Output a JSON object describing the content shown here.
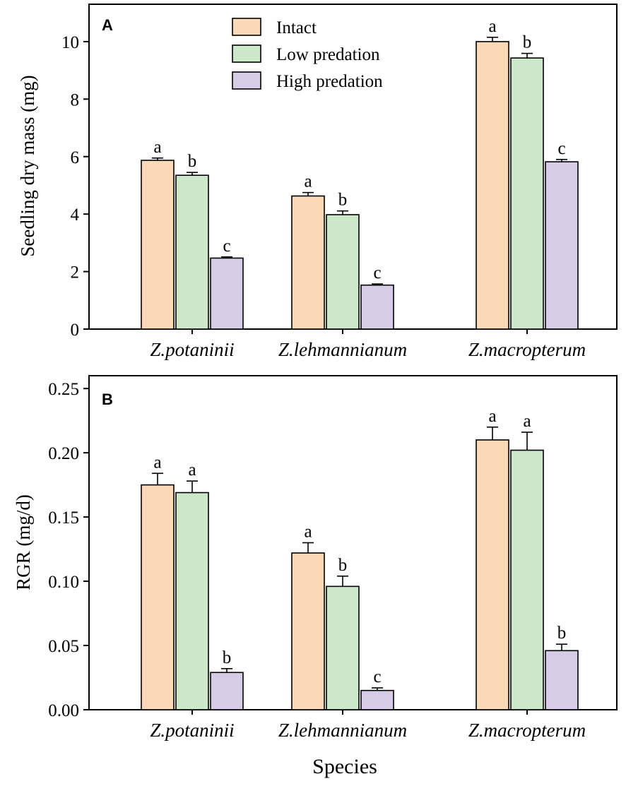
{
  "chart_data": [
    {
      "panel": "A",
      "type": "bar",
      "categories": [
        "Z.potaninii",
        "Z.lehmannianum",
        "Z.macropterum"
      ],
      "ylabel": "Seedling dry mass (mg)",
      "xlabel": "",
      "ylim": [
        0,
        11.3
      ],
      "yticks": [
        0,
        2,
        4,
        6,
        8,
        10
      ],
      "ytick_labels": [
        "0",
        "2",
        "4",
        "6",
        "8",
        "10"
      ],
      "legend": {
        "position": "top-center",
        "entries": [
          "Intact",
          "Low predation",
          "High predation"
        ]
      },
      "series": [
        {
          "name": "Intact",
          "color": "#FAD9B8",
          "values": [
            5.87,
            4.63,
            10.0
          ],
          "errors": [
            0.08,
            0.12,
            0.15
          ],
          "labels": [
            "a",
            "a",
            "a"
          ]
        },
        {
          "name": "Low predation",
          "color": "#CDE7CB",
          "values": [
            5.35,
            3.98,
            9.43
          ],
          "errors": [
            0.1,
            0.13,
            0.16
          ],
          "labels": [
            "b",
            "b",
            "b"
          ]
        },
        {
          "name": "High predation",
          "color": "#D7CCE5",
          "values": [
            2.47,
            1.53,
            5.82
          ],
          "errors": [
            0.04,
            0.04,
            0.08
          ],
          "labels": [
            "c",
            "c",
            "c"
          ]
        }
      ]
    },
    {
      "panel": "B",
      "type": "bar",
      "categories": [
        "Z.potaninii",
        "Z.lehmannianum",
        "Z.macropterum"
      ],
      "ylabel": "RGR (mg/d)",
      "xlabel": "Species",
      "ylim": [
        0,
        0.26
      ],
      "yticks": [
        0,
        0.05,
        0.1,
        0.15,
        0.2,
        0.25
      ],
      "ytick_labels": [
        "0.00",
        "0.05",
        "0.10",
        "0.15",
        "0.20",
        "0.25"
      ],
      "series": [
        {
          "name": "Intact",
          "color": "#FAD9B8",
          "values": [
            0.175,
            0.122,
            0.21
          ],
          "errors": [
            0.009,
            0.008,
            0.01
          ],
          "labels": [
            "a",
            "a",
            "a"
          ]
        },
        {
          "name": "Low predation",
          "color": "#CDE7CB",
          "values": [
            0.169,
            0.096,
            0.202
          ],
          "errors": [
            0.009,
            0.008,
            0.014
          ],
          "labels": [
            "a",
            "b",
            "a"
          ]
        },
        {
          "name": "High predation",
          "color": "#D7CCE5",
          "values": [
            0.029,
            0.015,
            0.046
          ],
          "errors": [
            0.003,
            0.002,
            0.005
          ],
          "labels": [
            "b",
            "c",
            "b"
          ]
        }
      ]
    }
  ]
}
